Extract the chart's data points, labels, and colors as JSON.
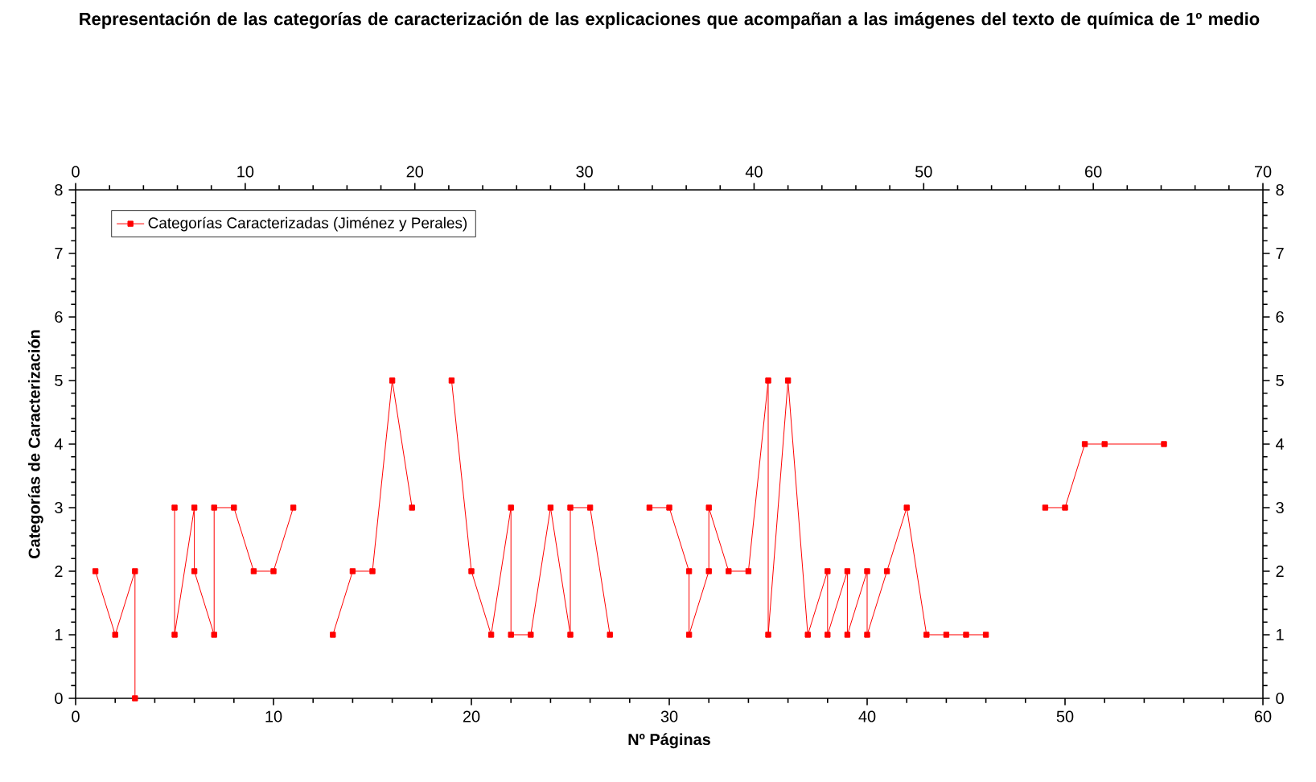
{
  "chart_data": {
    "type": "line",
    "title": "Representación de las categorías de caracterización de las explicaciones que acompañan a las imágenes del texto de química de  1º medio",
    "xlabel": "Nº Páginas",
    "ylabel": "Categorías de Caracterización",
    "series": [
      {
        "name": "Categorías Caracterizadas (Jiménez y Perales)",
        "color": "#ff0000",
        "x": [
          1,
          2,
          3,
          3,
          4,
          5,
          5,
          6,
          6,
          7,
          7,
          8,
          9,
          10,
          11,
          12,
          13,
          14,
          15,
          16,
          17,
          18,
          19,
          20,
          21,
          22,
          22,
          23,
          24,
          25,
          25,
          26,
          27,
          28,
          29,
          30,
          31,
          31,
          32,
          32,
          33,
          34,
          35,
          35,
          36,
          37,
          38,
          38,
          39,
          39,
          40,
          40,
          41,
          42,
          43,
          44,
          45,
          46,
          47,
          49,
          50,
          51,
          52,
          55
        ],
        "values": [
          2,
          1,
          2,
          0,
          null,
          3,
          1,
          3,
          2,
          1,
          3,
          3,
          2,
          2,
          3,
          null,
          1,
          2,
          2,
          5,
          3,
          null,
          5,
          2,
          1,
          3,
          1,
          1,
          3,
          1,
          3,
          3,
          1,
          null,
          3,
          3,
          2,
          1,
          2,
          3,
          2,
          2,
          5,
          1,
          5,
          1,
          2,
          1,
          2,
          1,
          2,
          1,
          2,
          3,
          1,
          1,
          1,
          1,
          null,
          3,
          3,
          4,
          4,
          4
        ]
      }
    ],
    "xlim": [
      0,
      60
    ],
    "xticks": [
      0,
      10,
      20,
      30,
      40,
      50,
      60
    ],
    "x2lim": [
      0,
      70
    ],
    "x2ticks": [
      0,
      10,
      20,
      30,
      40,
      50,
      60,
      70
    ],
    "ylim": [
      0,
      8
    ],
    "yticks": [
      0,
      1,
      2,
      3,
      4,
      5,
      6,
      7,
      8
    ],
    "y2lim": [
      0,
      8
    ],
    "y2ticks": [
      0,
      1,
      2,
      3,
      4,
      5,
      6,
      7,
      8
    ],
    "grid": false,
    "legend": "top left",
    "marker": "square",
    "line_style": "solid"
  }
}
